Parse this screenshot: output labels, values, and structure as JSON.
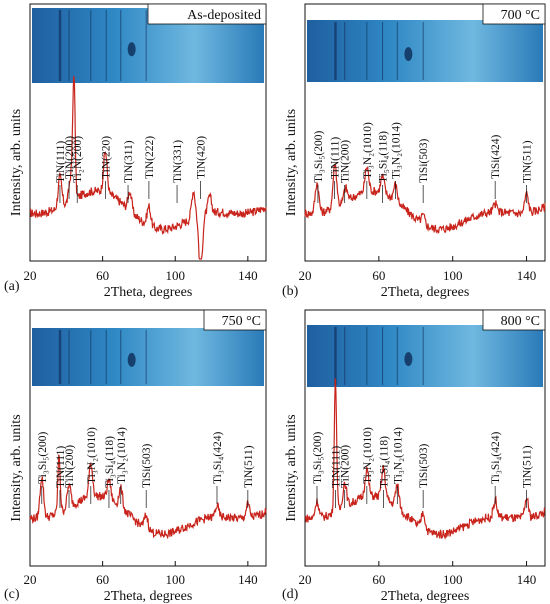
{
  "figure": {
    "ylabel": "Intensity, arb. units",
    "xlabel": "2Theta, degrees",
    "x_ticks": [
      20,
      60,
      100,
      140
    ],
    "xlim": [
      20,
      150
    ]
  },
  "colors": {
    "curve": "#c8241c",
    "axis": "#111111",
    "photo_base": "#2f88c4",
    "photo_light": "#7fc4e6",
    "photo_dark": "#0d2a55"
  },
  "chart_data": [
    {
      "panel_label": "(a)",
      "title": "As-deposited",
      "type": "line",
      "x_ticks": [
        20,
        60,
        100,
        140
      ],
      "peaks": [
        {
          "x": 36.5,
          "h": 0.55
        },
        {
          "x": 42.5,
          "h": 0.45
        },
        {
          "x": 44.2,
          "h": 2.2
        },
        {
          "x": 61.5,
          "h": 0.75
        },
        {
          "x": 75.0,
          "h": 0.35
        },
        {
          "x": 85.5,
          "h": 0.35
        },
        {
          "x": 110.0,
          "h": 0.5
        },
        {
          "x": 114.0,
          "h": -1.0
        },
        {
          "x": 119.0,
          "h": 0.3
        }
      ],
      "annotations": [
        {
          "text": "TiN(111)",
          "x": 36.5
        },
        {
          "text": "TiN(200)",
          "x": 41.5
        },
        {
          "text": "Ti₂N(200)",
          "x": 46.0
        },
        {
          "text": "TiN(220)",
          "x": 61.5
        },
        {
          "text": "TiN(311)",
          "x": 74.0
        },
        {
          "text": "TiN(222)",
          "x": 85.5
        },
        {
          "text": "TiN(331)",
          "x": 101.0
        },
        {
          "text": "TiN(420)",
          "x": 114.0
        }
      ]
    },
    {
      "panel_label": "(b)",
      "title": "700 °C",
      "type": "line",
      "x_ticks": [
        20,
        60,
        100,
        140
      ],
      "peaks": [
        {
          "x": 26.5,
          "h": 0.55
        },
        {
          "x": 36.2,
          "h": 0.8
        },
        {
          "x": 42.0,
          "h": 0.25
        },
        {
          "x": 53.5,
          "h": 0.45
        },
        {
          "x": 62.0,
          "h": 0.3
        },
        {
          "x": 69.0,
          "h": 0.3
        },
        {
          "x": 84.0,
          "h": 0.15
        },
        {
          "x": 123.0,
          "h": 0.15
        },
        {
          "x": 140.0,
          "h": 0.35
        }
      ],
      "annotations": [
        {
          "text": "Ti₃Si₅(200)",
          "x": 27.0
        },
        {
          "text": "TiN(111)",
          "x": 36.0
        },
        {
          "text": "TiN(200)",
          "x": 41.5
        },
        {
          "text": "Ti₃N₂(1010)",
          "x": 53.5
        },
        {
          "text": "Ti₅Si₄(118)",
          "x": 62.0
        },
        {
          "text": "Ti₃N₂(1014)",
          "x": 69.0
        },
        {
          "text": "TiSi(503)",
          "x": 84.0
        },
        {
          "text": "TiSi(424)",
          "x": 123.0
        },
        {
          "text": "TiN(511)",
          "x": 140.0
        }
      ]
    },
    {
      "panel_label": "(c)",
      "title": "750 °C",
      "type": "line",
      "x_ticks": [
        20,
        60,
        100,
        140
      ],
      "peaks": [
        {
          "x": 26.5,
          "h": 0.75
        },
        {
          "x": 36.0,
          "h": 1.05
        },
        {
          "x": 41.5,
          "h": 0.4
        },
        {
          "x": 53.5,
          "h": 0.6
        },
        {
          "x": 63.5,
          "h": 0.35
        },
        {
          "x": 70.0,
          "h": 0.35
        },
        {
          "x": 84.0,
          "h": 0.25
        },
        {
          "x": 123.0,
          "h": 0.2
        },
        {
          "x": 140.0,
          "h": 0.25
        }
      ],
      "annotations": [
        {
          "text": "TiN(111)",
          "x": 36.5
        },
        {
          "text": "Ti₃Si₅(200)",
          "x": 26.5
        },
        {
          "text": "TiN(200)",
          "x": 41.5
        },
        {
          "text": "Ti₃N₂(1010)",
          "x": 53.5
        },
        {
          "text": "Ti₃Si₄(118)",
          "x": 63.5
        },
        {
          "text": "Ti₃N₂(1014)",
          "x": 70.0
        },
        {
          "text": "TiSi(503)",
          "x": 84.0
        },
        {
          "text": "Ti₃Si₄(424)",
          "x": 123.0
        },
        {
          "text": "TiN(511)",
          "x": 140.0
        }
      ]
    },
    {
      "panel_label": "(d)",
      "title": "800 °C",
      "type": "line",
      "x_ticks": [
        20,
        60,
        100,
        140
      ],
      "peaks": [
        {
          "x": 26.5,
          "h": 0.3
        },
        {
          "x": 36.5,
          "h": 2.4
        },
        {
          "x": 41.5,
          "h": 0.45
        },
        {
          "x": 53.5,
          "h": 0.5
        },
        {
          "x": 62.5,
          "h": 0.55
        },
        {
          "x": 70.0,
          "h": 0.4
        },
        {
          "x": 84.0,
          "h": 0.3
        },
        {
          "x": 123.0,
          "h": 0.3
        },
        {
          "x": 140.0,
          "h": 0.35
        }
      ],
      "annotations": [
        {
          "text": "TiN(111)",
          "x": 36.5
        },
        {
          "text": "Ti₃Si₅(200)",
          "x": 26.5
        },
        {
          "text": "TiN(200)",
          "x": 41.5
        },
        {
          "text": "Ti₃N₂(1010)",
          "x": 53.5
        },
        {
          "text": "Ti₃Si₄(118)",
          "x": 62.5
        },
        {
          "text": "Ti₃N₂(1014)",
          "x": 70.0
        },
        {
          "text": "TiSi(503)",
          "x": 84.0
        },
        {
          "text": "Ti₃Si₄(424)",
          "x": 123.0
        },
        {
          "text": "TiN(511)",
          "x": 140.0
        }
      ]
    }
  ]
}
